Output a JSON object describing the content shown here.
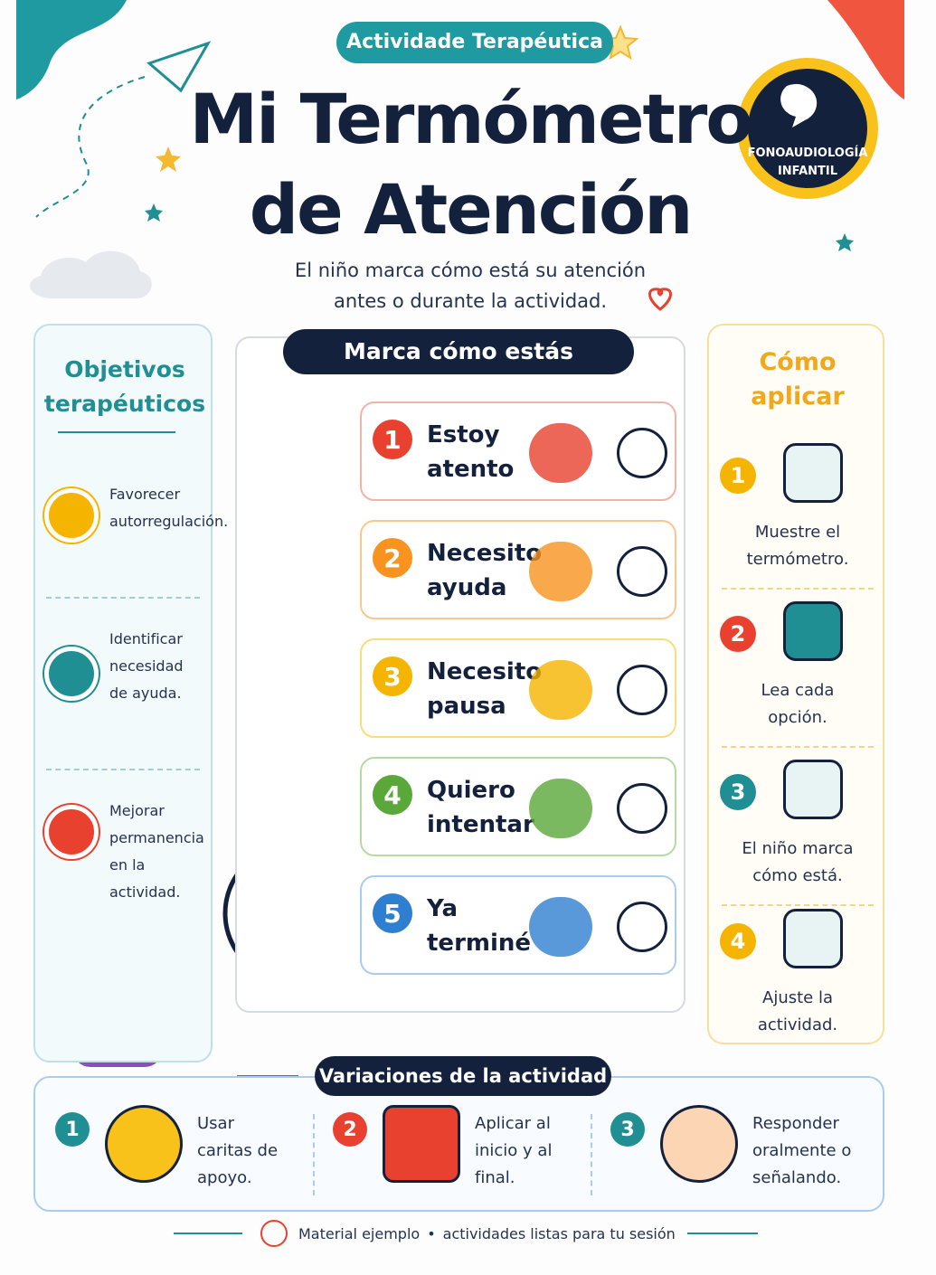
{
  "badge": "Actividade Terapéutica",
  "title": [
    "Mi Termómetro",
    "de Atención"
  ],
  "subtitle": [
    "El niño marca cómo está su atención",
    "antes o durante la actividad."
  ],
  "logo": [
    "FONOAUDIOLOGÍA",
    "INFANTIL"
  ],
  "objectives": {
    "title": [
      "Objetivos",
      "terapéuticos"
    ],
    "items": [
      [
        "Favorecer",
        "autorregulación."
      ],
      [
        "Identificar",
        "necesidad",
        "de ayuda."
      ],
      [
        "Mejorar",
        "permanencia",
        "en la actividad."
      ]
    ]
  },
  "scale": {
    "title": "Marca cómo estás",
    "options": [
      {
        "number": 1,
        "label": [
          "Estoy",
          "atento"
        ]
      },
      {
        "number": 2,
        "label": [
          "Necesito",
          "ayuda"
        ]
      },
      {
        "number": 3,
        "label": [
          "Necesito",
          "pausa"
        ]
      },
      {
        "number": 4,
        "label": [
          "Quiero",
          "intentar"
        ]
      },
      {
        "number": 5,
        "label": [
          "Ya",
          "terminé"
        ]
      }
    ]
  },
  "howto": {
    "title": [
      "Cómo",
      "aplicar"
    ],
    "steps": [
      {
        "number": 1,
        "text": [
          "Muestre el",
          "termómetro."
        ]
      },
      {
        "number": 2,
        "text": [
          "Lea cada",
          "opción."
        ]
      },
      {
        "number": 3,
        "text": [
          "El niño marca",
          "cómo está."
        ]
      },
      {
        "number": 4,
        "text": [
          "Ajuste la",
          "actividad."
        ]
      }
    ]
  },
  "variations": {
    "title": "Variaciones de la actividad",
    "items": [
      {
        "number": 1,
        "text": [
          "Usar",
          "caritas de",
          "apoyo."
        ]
      },
      {
        "number": 2,
        "text": [
          "Aplicar al",
          "inicio y al",
          "final."
        ]
      },
      {
        "number": 3,
        "text": [
          "Responder",
          "oralmente o",
          "señalando."
        ]
      }
    ]
  },
  "footer": {
    "text": "Material ejemplo",
    "separator": "•",
    "text2": "actividades listas para tu sesión"
  }
}
